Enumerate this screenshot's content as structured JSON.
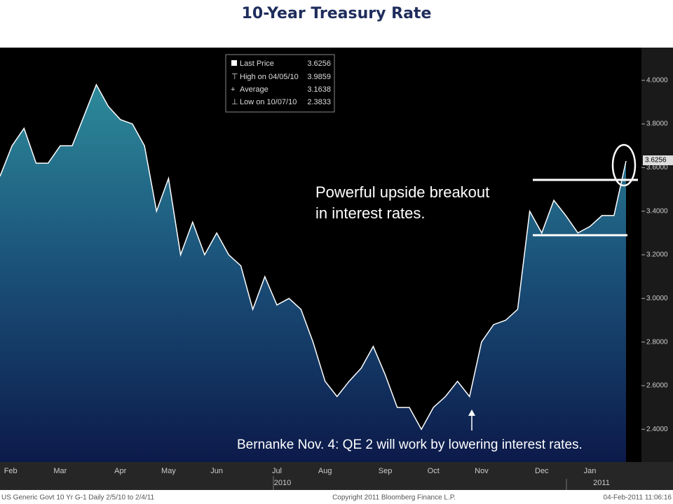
{
  "chart_data": {
    "type": "area",
    "title": "10-Year Treasury Rate",
    "categories": [
      null,
      "Feb",
      null,
      null,
      null,
      "Mar",
      null,
      null,
      null,
      null,
      "Apr",
      null,
      null,
      null,
      "May",
      null,
      null,
      null,
      "Jun",
      null,
      null,
      null,
      null,
      "Jul",
      null,
      null,
      null,
      "Aug",
      null,
      null,
      null,
      null,
      "Sep",
      null,
      null,
      null,
      "Oct",
      null,
      null,
      null,
      "Nov",
      null,
      null,
      null,
      null,
      "Dec",
      null,
      null,
      null,
      "Jan",
      null,
      null,
      null
    ],
    "years": [
      "2010",
      "2011"
    ],
    "series": [
      {
        "name": "Last Price",
        "color": "#ffffff",
        "values": [
          3.56,
          3.7,
          3.78,
          3.62,
          3.62,
          3.7,
          3.7,
          3.84,
          3.98,
          3.88,
          3.82,
          3.8,
          3.7,
          3.4,
          3.55,
          3.2,
          3.35,
          3.2,
          3.3,
          3.2,
          3.15,
          2.95,
          3.1,
          2.97,
          3.0,
          2.95,
          2.8,
          2.62,
          2.55,
          2.62,
          2.68,
          2.78,
          2.65,
          2.5,
          2.5,
          2.4,
          2.5,
          2.55,
          2.62,
          2.55,
          2.8,
          2.88,
          2.9,
          2.95,
          3.4,
          3.3,
          3.45,
          3.38,
          3.3,
          3.33,
          3.38,
          3.38,
          3.63
        ]
      }
    ],
    "ylim": [
      2.25,
      4.15
    ],
    "yticks": [
      {
        "value": 2.4,
        "label": "2.4000"
      },
      {
        "value": 2.6,
        "label": "2.6000"
      },
      {
        "value": 2.8,
        "label": "2.8000"
      },
      {
        "value": 3.0,
        "label": "3.0000"
      },
      {
        "value": 3.2,
        "label": "3.2000"
      },
      {
        "value": 3.4,
        "label": "3.4000"
      },
      {
        "value": 3.6,
        "label": "3.6000"
      },
      {
        "value": 3.8,
        "label": "3.8000"
      },
      {
        "value": 4.0,
        "label": "4.0000"
      }
    ],
    "last_price_tag": "3.6256",
    "legend": [
      {
        "label": "Last Price",
        "value": "3.6256"
      },
      {
        "label": "High on 04/05/10",
        "value": "3.9859"
      },
      {
        "label": "Average",
        "value": "3.1638"
      },
      {
        "label": "Low on 10/07/10",
        "value": "2.3833"
      }
    ],
    "annotations": [
      "Powerful upside breakout",
      "in interest rates.",
      "Bernanke Nov. 4: QE 2 will work by lowering interest rates."
    ],
    "footer": [
      "US Generic Govt 10 Yr   G-1  Daily  2/5/10 to 2/4/11",
      "Copyright 2011 Bloomberg Finance L.P.",
      "04-Feb-2011 11:06:16"
    ]
  }
}
